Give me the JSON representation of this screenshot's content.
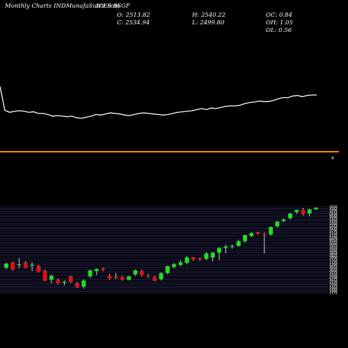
{
  "header": {
    "site": "Monthly Charts INDMunafaSutra.com",
    "symbol": "ICES SSGF",
    "open": "O: 2513.82",
    "high": "H: 2540.22",
    "open_close": "OC: 0.84",
    "close": "C: 2534.94",
    "low": "L: 2499.80",
    "open_high": "OH: 1.05",
    "open_low": "OL: 0.56"
  },
  "colors": {
    "background": "#000000",
    "line": "#ffffff",
    "divider": "#ff8c00",
    "up": "#22dd22",
    "down": "#dd1111",
    "grid": "#3a3a7a"
  },
  "side_mark": "4",
  "chart_data": [
    {
      "type": "line",
      "title": "",
      "y_scale": "relative",
      "values": [
        100,
        56,
        52,
        54,
        55,
        54,
        52,
        53,
        50,
        50,
        48,
        45,
        46,
        45,
        44,
        45,
        42,
        41,
        43,
        45,
        48,
        47,
        49,
        51,
        50,
        49,
        47,
        46,
        48,
        50,
        51,
        50,
        49,
        48,
        47,
        48,
        50,
        52,
        53,
        54,
        55,
        57,
        59,
        57,
        60,
        59,
        61,
        63,
        64,
        64,
        65,
        68,
        70,
        71,
        73,
        72,
        72,
        74,
        77,
        79,
        79,
        82,
        83,
        81,
        83,
        84,
        84
      ]
    },
    {
      "type": "candlestick",
      "title": "",
      "ylim": [
        1275,
        2550
      ],
      "y_ticks": [
        2550,
        2525,
        2500,
        2475,
        2450,
        2425,
        2400,
        2375,
        2350,
        2325,
        2300,
        2275,
        2250,
        2225,
        2200,
        2175,
        2150,
        2125,
        2100,
        2075,
        2050,
        2025,
        2000,
        1975,
        1950,
        1925,
        1900,
        1875,
        1850,
        1825,
        1800,
        1775,
        1750,
        1725,
        1700,
        1675,
        1650,
        1625,
        1600,
        1575,
        1550,
        1525,
        1500,
        1475,
        1450,
        1425,
        1400,
        1375,
        1350,
        1325,
        1300,
        1275
      ],
      "candles": [
        {
          "o": 1650,
          "h": 1720,
          "l": 1625,
          "c": 1710
        },
        {
          "o": 1725,
          "h": 1740,
          "l": 1610,
          "c": 1620
        },
        {
          "o": 1700,
          "h": 1790,
          "l": 1640,
          "c": 1700
        },
        {
          "o": 1720,
          "h": 1750,
          "l": 1640,
          "c": 1650
        },
        {
          "o": 1680,
          "h": 1730,
          "l": 1600,
          "c": 1690
        },
        {
          "o": 1670,
          "h": 1690,
          "l": 1580,
          "c": 1590
        },
        {
          "o": 1600,
          "h": 1620,
          "l": 1450,
          "c": 1460
        },
        {
          "o": 1470,
          "h": 1550,
          "l": 1420,
          "c": 1530
        },
        {
          "o": 1470,
          "h": 1490,
          "l": 1400,
          "c": 1420
        },
        {
          "o": 1430,
          "h": 1460,
          "l": 1390,
          "c": 1440
        },
        {
          "o": 1520,
          "h": 1530,
          "l": 1420,
          "c": 1440
        },
        {
          "o": 1420,
          "h": 1440,
          "l": 1350,
          "c": 1360
        },
        {
          "o": 1370,
          "h": 1480,
          "l": 1340,
          "c": 1460
        },
        {
          "o": 1520,
          "h": 1620,
          "l": 1500,
          "c": 1610
        },
        {
          "o": 1600,
          "h": 1640,
          "l": 1540,
          "c": 1630
        },
        {
          "o": 1640,
          "h": 1650,
          "l": 1600,
          "c": 1620
        },
        {
          "o": 1530,
          "h": 1560,
          "l": 1470,
          "c": 1490
        },
        {
          "o": 1520,
          "h": 1570,
          "l": 1480,
          "c": 1500
        },
        {
          "o": 1510,
          "h": 1530,
          "l": 1460,
          "c": 1470
        },
        {
          "o": 1470,
          "h": 1530,
          "l": 1460,
          "c": 1520
        },
        {
          "o": 1550,
          "h": 1620,
          "l": 1530,
          "c": 1610
        },
        {
          "o": 1600,
          "h": 1620,
          "l": 1520,
          "c": 1540
        },
        {
          "o": 1530,
          "h": 1560,
          "l": 1500,
          "c": 1520
        },
        {
          "o": 1510,
          "h": 1530,
          "l": 1450,
          "c": 1460
        },
        {
          "o": 1480,
          "h": 1580,
          "l": 1460,
          "c": 1570
        },
        {
          "o": 1570,
          "h": 1680,
          "l": 1550,
          "c": 1670
        },
        {
          "o": 1660,
          "h": 1720,
          "l": 1640,
          "c": 1700
        },
        {
          "o": 1690,
          "h": 1760,
          "l": 1670,
          "c": 1730
        },
        {
          "o": 1720,
          "h": 1820,
          "l": 1700,
          "c": 1800
        },
        {
          "o": 1800,
          "h": 1810,
          "l": 1750,
          "c": 1770
        },
        {
          "o": 1790,
          "h": 1800,
          "l": 1750,
          "c": 1780
        },
        {
          "o": 1780,
          "h": 1880,
          "l": 1760,
          "c": 1860
        },
        {
          "o": 1800,
          "h": 1880,
          "l": 1740,
          "c": 1870
        },
        {
          "o": 1870,
          "h": 1950,
          "l": 1760,
          "c": 1940
        },
        {
          "o": 1940,
          "h": 1990,
          "l": 1860,
          "c": 1960
        },
        {
          "o": 1960,
          "h": 1990,
          "l": 1930,
          "c": 1970
        },
        {
          "o": 1970,
          "h": 2060,
          "l": 1960,
          "c": 2040
        },
        {
          "o": 2040,
          "h": 2140,
          "l": 2020,
          "c": 2130
        },
        {
          "o": 2120,
          "h": 2170,
          "l": 2100,
          "c": 2160
        },
        {
          "o": 2170,
          "h": 2180,
          "l": 2140,
          "c": 2150
        },
        {
          "o": 2150,
          "h": 2170,
          "l": 1860,
          "c": 2140
        },
        {
          "o": 2140,
          "h": 2260,
          "l": 2120,
          "c": 2250
        },
        {
          "o": 2260,
          "h": 2340,
          "l": 2240,
          "c": 2330
        },
        {
          "o": 2340,
          "h": 2380,
          "l": 2320,
          "c": 2360
        },
        {
          "o": 2380,
          "h": 2460,
          "l": 2360,
          "c": 2450
        },
        {
          "o": 2470,
          "h": 2510,
          "l": 2440,
          "c": 2500
        },
        {
          "o": 2505,
          "h": 2530,
          "l": 2420,
          "c": 2440
        },
        {
          "o": 2450,
          "h": 2520,
          "l": 2410,
          "c": 2510
        },
        {
          "o": 2513.82,
          "h": 2540.22,
          "l": 2499.8,
          "c": 2534.94
        }
      ]
    }
  ]
}
